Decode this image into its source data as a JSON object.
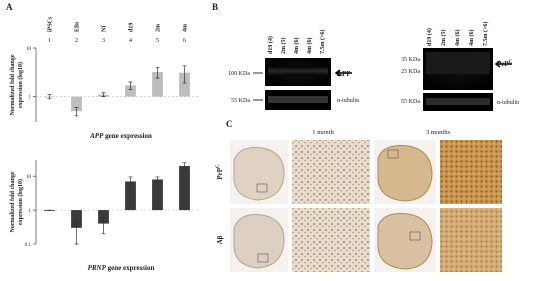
{
  "panel_a": {
    "label": "A",
    "charts": [
      {
        "type": "bar",
        "title_gene": "APP",
        "title_rest": "gene expression",
        "y_label": [
          "Normalized fold change",
          "expression (log10)"
        ],
        "category_numbers": [
          1,
          2,
          3,
          4,
          5,
          6
        ],
        "categories": [
          "iPSCs",
          "EBs",
          "NI",
          "d19",
          "2m",
          "4m"
        ],
        "values": [
          1,
          0.5,
          1.1,
          1.7,
          3.2,
          3.1
        ],
        "errors": [
          0.1,
          0.1,
          0.1,
          0.3,
          0.8,
          1.2
        ],
        "log_scale": true,
        "ylim": [
          0.3,
          10
        ],
        "yticks": [
          1,
          10
        ],
        "color": "#bdbdbd"
      },
      {
        "type": "bar",
        "title_gene": "PRNP",
        "title_rest": "gene expression",
        "y_label": [
          "Normalized fold change",
          "expression (log10)"
        ],
        "values": [
          1,
          0.3,
          0.4,
          7,
          8,
          20
        ],
        "errors": [
          0,
          0.2,
          0.2,
          2.5,
          1.5,
          5
        ],
        "log_scale": true,
        "ylim": [
          0.1,
          30
        ],
        "yticks": [
          0.1,
          1,
          10
        ],
        "color": "#3a3a3a"
      }
    ]
  },
  "panel_b": {
    "label": "B",
    "left_blot": {
      "lanes": [
        "d19 (4)",
        "2m (5)",
        "4m (6)",
        "4m (6)",
        "7.5m (>6)"
      ],
      "markers": [
        "100 KDa",
        "55 KDa"
      ],
      "target": "APP",
      "loading": "α-tubulin"
    },
    "right_blot": {
      "lanes": [
        "d19 (4)",
        "2m (5)",
        "4m (6)",
        "4m (6)",
        "7.5m (>6)"
      ],
      "markers": [
        "35 KDa",
        "25 KDa",
        "55 KDa"
      ],
      "target": "PrP",
      "target_sup": "C",
      "loading": "α-tubulin"
    }
  },
  "panel_c": {
    "label": "C",
    "columns": [
      "1 month",
      "3 months"
    ],
    "rows": [
      {
        "label": "PrP",
        "sup": "C"
      },
      {
        "label": "Aβ"
      }
    ]
  }
}
